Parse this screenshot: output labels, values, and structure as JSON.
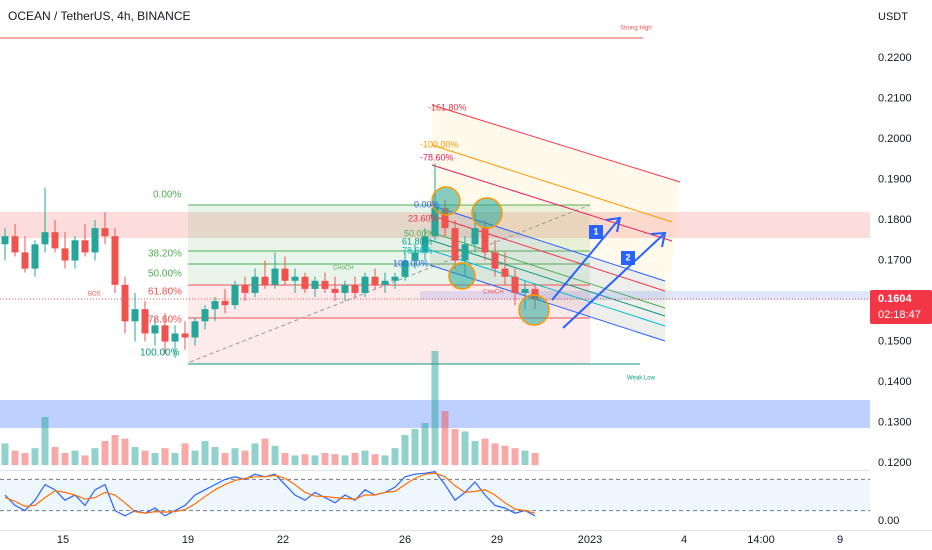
{
  "chart_data": [
    {
      "type": "candlestick",
      "title": "OCEAN / TetherUS, 4h, BINANCE",
      "axis_label": "USDT",
      "open": [
        0.174,
        0.176,
        0.172,
        0.168,
        0.174,
        0.177,
        0.173,
        0.17,
        0.175,
        0.172,
        0.178,
        0.176,
        0.164,
        0.155,
        0.158,
        0.152,
        0.154,
        0.15,
        0.152,
        0.151,
        0.155,
        0.158,
        0.16,
        0.159,
        0.164,
        0.162,
        0.166,
        0.164,
        0.168,
        0.165,
        0.166,
        0.163,
        0.165,
        0.163,
        0.162,
        0.164,
        0.162,
        0.166,
        0.164,
        0.165,
        0.166,
        0.17,
        0.172,
        0.176,
        0.183,
        0.178,
        0.17,
        0.174,
        0.178,
        0.172,
        0.168,
        0.166,
        0.162,
        0.163
      ],
      "high": [
        0.178,
        0.179,
        0.176,
        0.175,
        0.188,
        0.18,
        0.177,
        0.176,
        0.179,
        0.18,
        0.182,
        0.178,
        0.166,
        0.162,
        0.16,
        0.156,
        0.157,
        0.154,
        0.155,
        0.156,
        0.159,
        0.161,
        0.163,
        0.165,
        0.166,
        0.168,
        0.17,
        0.172,
        0.171,
        0.168,
        0.167,
        0.166,
        0.167,
        0.166,
        0.165,
        0.166,
        0.167,
        0.168,
        0.167,
        0.167,
        0.172,
        0.174,
        0.178,
        0.194,
        0.185,
        0.18,
        0.176,
        0.182,
        0.18,
        0.175,
        0.172,
        0.168,
        0.165,
        0.164
      ],
      "low": [
        0.17,
        0.171,
        0.167,
        0.166,
        0.172,
        0.172,
        0.168,
        0.168,
        0.171,
        0.17,
        0.174,
        0.162,
        0.152,
        0.15,
        0.15,
        0.149,
        0.147,
        0.146,
        0.148,
        0.149,
        0.153,
        0.155,
        0.157,
        0.158,
        0.16,
        0.161,
        0.163,
        0.163,
        0.164,
        0.162,
        0.162,
        0.161,
        0.162,
        0.16,
        0.16,
        0.161,
        0.161,
        0.163,
        0.162,
        0.163,
        0.165,
        0.168,
        0.17,
        0.175,
        0.176,
        0.168,
        0.166,
        0.172,
        0.17,
        0.166,
        0.164,
        0.159,
        0.158,
        0.158
      ],
      "close": [
        0.176,
        0.172,
        0.168,
        0.174,
        0.177,
        0.173,
        0.17,
        0.175,
        0.172,
        0.178,
        0.176,
        0.164,
        0.155,
        0.158,
        0.152,
        0.154,
        0.15,
        0.152,
        0.151,
        0.155,
        0.158,
        0.16,
        0.159,
        0.164,
        0.162,
        0.166,
        0.164,
        0.168,
        0.165,
        0.166,
        0.163,
        0.165,
        0.163,
        0.162,
        0.164,
        0.162,
        0.166,
        0.164,
        0.165,
        0.166,
        0.17,
        0.172,
        0.176,
        0.183,
        0.178,
        0.17,
        0.174,
        0.178,
        0.172,
        0.168,
        0.166,
        0.162,
        0.163,
        0.1604
      ],
      "volume": [
        18,
        12,
        10,
        14,
        40,
        15,
        10,
        12,
        8,
        14,
        20,
        25,
        22,
        15,
        12,
        10,
        14,
        10,
        18,
        12,
        20,
        15,
        10,
        14,
        12,
        18,
        22,
        16,
        10,
        8,
        9,
        8,
        10,
        9,
        8,
        10,
        12,
        9,
        8,
        14,
        25,
        30,
        35,
        95,
        45,
        30,
        28,
        20,
        22,
        18,
        16,
        14,
        12,
        10
      ],
      "volume_lim": [
        0,
        100
      ],
      "up_color": "#26a69a",
      "down_color": "#ef5350",
      "last_value_label": "0.1604",
      "countdown": "02:18:47",
      "ylim": [
        0.1183,
        0.2343
      ],
      "yticks": [
        {
          "value": 0.22,
          "label": "0.2200"
        },
        {
          "value": 0.21,
          "label": "0.2100"
        },
        {
          "value": 0.2,
          "label": "0.2000"
        },
        {
          "value": 0.19,
          "label": "0.1900"
        },
        {
          "value": 0.18,
          "label": "0.1800"
        },
        {
          "value": 0.17,
          "label": "0.1700"
        },
        {
          "value": 0.15,
          "label": "0.1500"
        },
        {
          "value": 0.14,
          "label": "0.1400"
        },
        {
          "value": 0.13,
          "label": "0.1300"
        },
        {
          "value": 0.12,
          "label": "0.1200"
        }
      ],
      "xlim": [
        -0.5,
        86.5
      ],
      "xticks": [
        {
          "value": 5.8,
          "label": "15"
        },
        {
          "value": 18.3,
          "label": "19"
        },
        {
          "value": 27.8,
          "label": "22"
        },
        {
          "value": 40,
          "label": "26"
        },
        {
          "value": 49.2,
          "label": "29"
        },
        {
          "value": 58.5,
          "label": "2023"
        },
        {
          "value": 67.9,
          "label": "4"
        },
        {
          "value": 75.6,
          "label": "14:00"
        },
        {
          "value": 83.5,
          "label": "9"
        }
      ],
      "fib_labels": [
        "0.00%",
        "38.20%",
        "50.00%",
        "61.80%",
        "78.60%",
        "100.00%"
      ],
      "channel_labels": [
        "-161.80%",
        "-100.00%",
        "-78.60%",
        "0.00%",
        "23.60%",
        "50.00%",
        "61.80%",
        "78.60%",
        "100.00%"
      ],
      "annotations": [
        "Strong High",
        "Weak Low",
        "CHoCH",
        "CHoCH",
        "BOS",
        "1",
        "2"
      ]
    },
    {
      "type": "line",
      "ylim": [
        0,
        100
      ],
      "yticks": [
        {
          "value": 0,
          "label": "0.00"
        }
      ],
      "bands": [
        20,
        80
      ],
      "series": [
        {
          "color": "#2962ff",
          "values": [
            50,
            30,
            20,
            40,
            70,
            60,
            40,
            50,
            30,
            60,
            70,
            20,
            10,
            20,
            15,
            25,
            10,
            20,
            30,
            50,
            60,
            70,
            80,
            85,
            80,
            90,
            85,
            90,
            70,
            50,
            40,
            55,
            45,
            35,
            50,
            40,
            60,
            50,
            55,
            65,
            85,
            90,
            92,
            95,
            70,
            40,
            55,
            75,
            50,
            30,
            25,
            15,
            20,
            10
          ]
        },
        {
          "color": "#ff6d00",
          "values": [
            45,
            38,
            28,
            30,
            45,
            58,
            55,
            50,
            42,
            45,
            55,
            50,
            35,
            18,
            15,
            18,
            17,
            18,
            22,
            33,
            47,
            60,
            70,
            78,
            82,
            85,
            85,
            88,
            82,
            70,
            55,
            48,
            47,
            45,
            43,
            42,
            50,
            50,
            55,
            57,
            70,
            82,
            90,
            92,
            85,
            68,
            55,
            57,
            60,
            50,
            35,
            23,
            20,
            15
          ]
        }
      ]
    }
  ]
}
